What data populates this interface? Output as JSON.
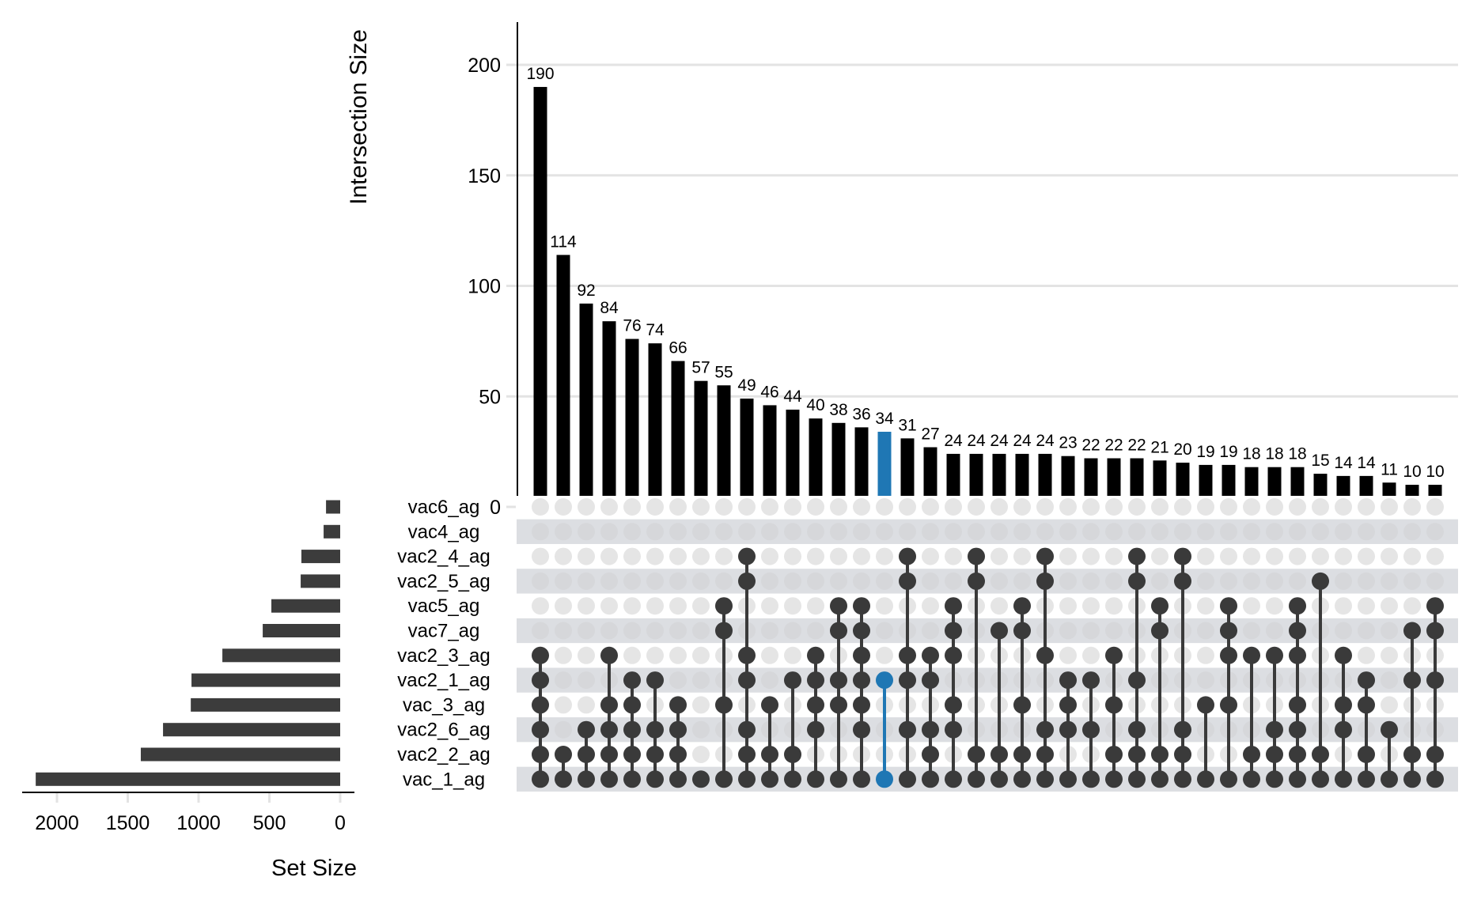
{
  "chart_data": {
    "type": "upset",
    "intersection_axis": {
      "label": "Intersection Size",
      "ticks": [
        0,
        50,
        100,
        150,
        200
      ],
      "ylim": [
        0,
        215
      ],
      "grid": true
    },
    "set_size_axis": {
      "label": "Set Size",
      "ticks": [
        2000,
        1500,
        1000,
        500,
        0
      ],
      "xlim": [
        0,
        2300
      ],
      "reversed": true
    },
    "sets": [
      {
        "name": "vac6_ag",
        "size": 100
      },
      {
        "name": "vac4_ag",
        "size": 117
      },
      {
        "name": "vac2_4_ag",
        "size": 274
      },
      {
        "name": "vac2_5_ag",
        "size": 279
      },
      {
        "name": "vac5_ag",
        "size": 486
      },
      {
        "name": "vac7_ag",
        "size": 547
      },
      {
        "name": "vac2_3_ag",
        "size": 832
      },
      {
        "name": "vac2_1_ag",
        "size": 1050
      },
      {
        "name": "vac_3_ag",
        "size": 1055
      },
      {
        "name": "vac2_6_ag",
        "size": 1251
      },
      {
        "name": "vac2_2_ag",
        "size": 1408
      },
      {
        "name": "vac_1_ag",
        "size": 2150
      }
    ],
    "intersections": [
      {
        "size": 190,
        "sets": [
          "vac2_3_ag",
          "vac2_1_ag",
          "vac_3_ag",
          "vac2_6_ag",
          "vac2_2_ag",
          "vac_1_ag"
        ]
      },
      {
        "size": 114,
        "sets": [
          "vac2_2_ag",
          "vac_1_ag"
        ]
      },
      {
        "size": 92,
        "sets": [
          "vac2_6_ag",
          "vac2_2_ag",
          "vac_1_ag"
        ]
      },
      {
        "size": 84,
        "sets": [
          "vac2_3_ag",
          "vac_3_ag",
          "vac2_6_ag",
          "vac2_2_ag",
          "vac_1_ag"
        ]
      },
      {
        "size": 76,
        "sets": [
          "vac2_1_ag",
          "vac_3_ag",
          "vac2_6_ag",
          "vac2_2_ag",
          "vac_1_ag"
        ]
      },
      {
        "size": 74,
        "sets": [
          "vac2_1_ag",
          "vac2_6_ag",
          "vac2_2_ag",
          "vac_1_ag"
        ]
      },
      {
        "size": 66,
        "sets": [
          "vac_3_ag",
          "vac2_6_ag",
          "vac2_2_ag",
          "vac_1_ag"
        ]
      },
      {
        "size": 57,
        "sets": [
          "vac_1_ag"
        ]
      },
      {
        "size": 55,
        "sets": [
          "vac5_ag",
          "vac7_ag",
          "vac_3_ag",
          "vac_1_ag"
        ]
      },
      {
        "size": 49,
        "sets": [
          "vac2_4_ag",
          "vac2_5_ag",
          "vac2_3_ag",
          "vac2_1_ag",
          "vac2_6_ag",
          "vac2_2_ag",
          "vac_1_ag"
        ]
      },
      {
        "size": 46,
        "sets": [
          "vac_3_ag",
          "vac2_2_ag",
          "vac_1_ag"
        ]
      },
      {
        "size": 44,
        "sets": [
          "vac2_1_ag",
          "vac2_2_ag",
          "vac_1_ag"
        ]
      },
      {
        "size": 40,
        "sets": [
          "vac2_3_ag",
          "vac2_1_ag",
          "vac_3_ag",
          "vac2_6_ag",
          "vac_1_ag"
        ]
      },
      {
        "size": 38,
        "sets": [
          "vac5_ag",
          "vac7_ag",
          "vac2_1_ag",
          "vac_3_ag",
          "vac_1_ag"
        ]
      },
      {
        "size": 36,
        "sets": [
          "vac5_ag",
          "vac7_ag",
          "vac2_3_ag",
          "vac2_1_ag",
          "vac_3_ag",
          "vac2_6_ag",
          "vac_1_ag"
        ]
      },
      {
        "size": 34,
        "sets": [
          "vac2_1_ag",
          "vac_1_ag"
        ],
        "highlighted": true
      },
      {
        "size": 31,
        "sets": [
          "vac2_4_ag",
          "vac2_5_ag",
          "vac2_3_ag",
          "vac2_1_ag",
          "vac2_6_ag",
          "vac_1_ag"
        ]
      },
      {
        "size": 27,
        "sets": [
          "vac2_3_ag",
          "vac2_1_ag",
          "vac2_6_ag",
          "vac2_2_ag",
          "vac_1_ag"
        ]
      },
      {
        "size": 24,
        "sets": [
          "vac5_ag",
          "vac7_ag",
          "vac2_3_ag",
          "vac_3_ag",
          "vac2_6_ag",
          "vac_1_ag"
        ]
      },
      {
        "size": 24,
        "sets": [
          "vac2_4_ag",
          "vac2_5_ag",
          "vac2_2_ag",
          "vac_1_ag"
        ]
      },
      {
        "size": 24,
        "sets": [
          "vac7_ag",
          "vac2_2_ag",
          "vac_1_ag"
        ]
      },
      {
        "size": 24,
        "sets": [
          "vac5_ag",
          "vac7_ag",
          "vac_3_ag",
          "vac2_2_ag",
          "vac_1_ag"
        ]
      },
      {
        "size": 24,
        "sets": [
          "vac2_4_ag",
          "vac2_5_ag",
          "vac2_3_ag",
          "vac2_6_ag",
          "vac2_2_ag",
          "vac_1_ag"
        ]
      },
      {
        "size": 23,
        "sets": [
          "vac2_1_ag",
          "vac_3_ag",
          "vac2_6_ag",
          "vac_1_ag"
        ]
      },
      {
        "size": 22,
        "sets": [
          "vac2_1_ag",
          "vac2_6_ag",
          "vac_1_ag"
        ]
      },
      {
        "size": 22,
        "sets": [
          "vac2_3_ag",
          "vac_3_ag",
          "vac2_2_ag",
          "vac_1_ag"
        ]
      },
      {
        "size": 22,
        "sets": [
          "vac2_4_ag",
          "vac2_5_ag",
          "vac2_1_ag",
          "vac2_6_ag",
          "vac2_2_ag",
          "vac_1_ag"
        ]
      },
      {
        "size": 21,
        "sets": [
          "vac5_ag",
          "vac7_ag",
          "vac2_2_ag",
          "vac_1_ag"
        ]
      },
      {
        "size": 20,
        "sets": [
          "vac2_4_ag",
          "vac2_5_ag",
          "vac2_6_ag",
          "vac2_2_ag",
          "vac_1_ag"
        ]
      },
      {
        "size": 19,
        "sets": [
          "vac_3_ag",
          "vac_1_ag"
        ]
      },
      {
        "size": 19,
        "sets": [
          "vac5_ag",
          "vac7_ag",
          "vac2_3_ag",
          "vac_3_ag",
          "vac_1_ag"
        ]
      },
      {
        "size": 18,
        "sets": [
          "vac2_3_ag",
          "vac2_2_ag",
          "vac_1_ag"
        ]
      },
      {
        "size": 18,
        "sets": [
          "vac2_3_ag",
          "vac2_6_ag",
          "vac2_2_ag",
          "vac_1_ag"
        ]
      },
      {
        "size": 18,
        "sets": [
          "vac5_ag",
          "vac7_ag",
          "vac2_3_ag",
          "vac_3_ag",
          "vac2_6_ag",
          "vac2_2_ag",
          "vac_1_ag"
        ]
      },
      {
        "size": 15,
        "sets": [
          "vac2_5_ag",
          "vac2_2_ag",
          "vac_1_ag"
        ]
      },
      {
        "size": 14,
        "sets": [
          "vac2_3_ag",
          "vac_3_ag",
          "vac2_6_ag",
          "vac_1_ag"
        ]
      },
      {
        "size": 14,
        "sets": [
          "vac2_1_ag",
          "vac_3_ag",
          "vac2_2_ag",
          "vac_1_ag"
        ]
      },
      {
        "size": 11,
        "sets": [
          "vac2_6_ag",
          "vac_1_ag"
        ]
      },
      {
        "size": 10,
        "sets": [
          "vac7_ag",
          "vac2_1_ag",
          "vac2_2_ag",
          "vac_1_ag"
        ]
      },
      {
        "size": 10,
        "sets": [
          "vac5_ag",
          "vac7_ag",
          "vac2_1_ag",
          "vac2_2_ag",
          "vac_1_ag"
        ]
      }
    ],
    "colors": {
      "bar": "#000000",
      "highlight": "#1f77b4",
      "dot_active": "#3a3a3a",
      "dot_inactive": "#e5e5e5",
      "dot_inactive_on_stripe": "#d6d7da",
      "stripe": "#dcdee2",
      "set_bar": "#3c3c3c",
      "grid": "#e3e3e3"
    }
  }
}
